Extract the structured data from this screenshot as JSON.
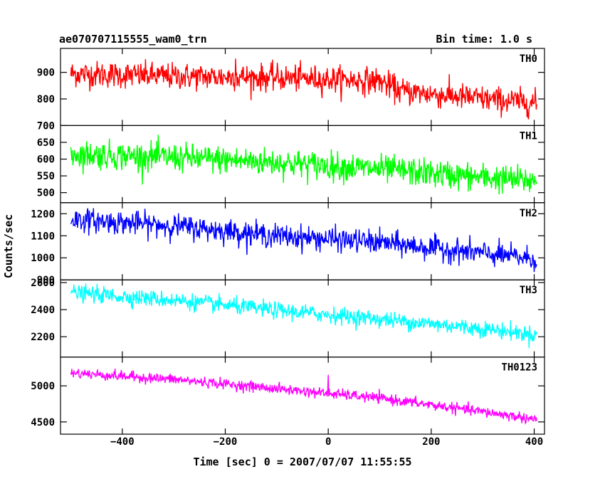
{
  "chart_data": {
    "type": "line",
    "title": "ae070707115555_wam0_trn",
    "bin_time": "Bin time: 1.0 s",
    "xlabel": "Time [sec] 0 = 2007/07/07 11:55:55",
    "ylabel": "Counts/sec",
    "xlim": [
      -520,
      420
    ],
    "x_ticks": [
      "−400",
      "−200",
      "0",
      "200",
      "400"
    ],
    "x_tick_values": [
      -400,
      -200,
      0,
      200,
      400
    ],
    "series": [
      {
        "name": "TH0",
        "color": "#ff0000",
        "ylim": [
          700,
          990
        ],
        "y_ticks": [
          "700",
          "800",
          "900"
        ],
        "y_tick_values": [
          700,
          800,
          900
        ],
        "trend": {
          "x": [
            -500,
            -300,
            -100,
            100,
            140,
            300,
            400
          ],
          "y": [
            895,
            885,
            880,
            868,
            830,
            800,
            785
          ]
        },
        "noise": 45
      },
      {
        "name": "TH1",
        "color": "#00ff00",
        "ylim": [
          470,
          700
        ],
        "y_ticks": [
          "500",
          "550",
          "600",
          "650"
        ],
        "y_tick_values": [
          500,
          550,
          600,
          650
        ],
        "trend": {
          "x": [
            -500,
            -300,
            -100,
            100,
            300,
            400
          ],
          "y": [
            615,
            605,
            590,
            570,
            545,
            535
          ]
        },
        "noise": 38
      },
      {
        "name": "TH2",
        "color": "#0000ff",
        "ylim": [
          900,
          1250
        ],
        "y_ticks": [
          "900",
          "1000",
          "1100",
          "1200"
        ],
        "y_tick_values": [
          900,
          1000,
          1100,
          1200
        ],
        "trend": {
          "x": [
            -500,
            -300,
            -100,
            100,
            300,
            400
          ],
          "y": [
            1175,
            1145,
            1100,
            1070,
            1020,
            995
          ]
        },
        "noise": 48
      },
      {
        "name": "TH3",
        "color": "#00ffff",
        "ylim": [
          2050,
          2620
        ],
        "y_ticks": [
          "2200",
          "2400",
          "2600"
        ],
        "y_tick_values": [
          2200,
          2400,
          2600
        ],
        "trend": {
          "x": [
            -500,
            -300,
            -100,
            100,
            300,
            400
          ],
          "y": [
            2525,
            2470,
            2395,
            2330,
            2260,
            2215
          ]
        },
        "noise": 55
      },
      {
        "name": "TH0123",
        "color": "#ff00ff",
        "ylim": [
          4330,
          5400
        ],
        "y_ticks": [
          "4500",
          "5000"
        ],
        "y_tick_values": [
          4500,
          5000
        ],
        "trend": {
          "x": [
            -500,
            -300,
            -100,
            100,
            300,
            400
          ],
          "y": [
            5180,
            5090,
            4960,
            4830,
            4640,
            4540
          ]
        },
        "noise": 65
      }
    ]
  }
}
